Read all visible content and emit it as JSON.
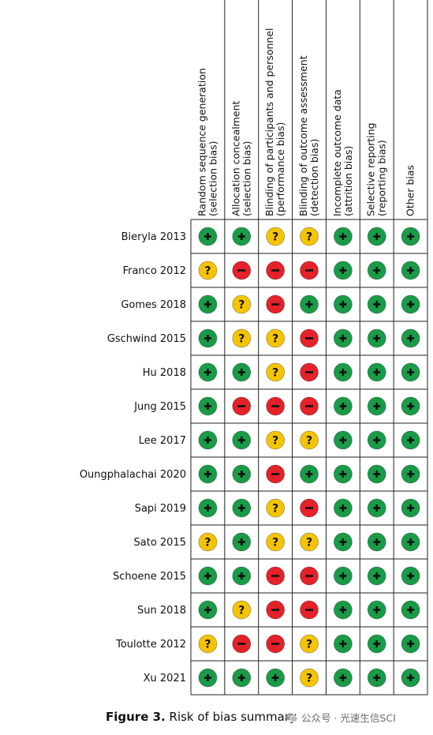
{
  "chart_data": {
    "type": "table",
    "columns": [
      [
        "Random sequence generation",
        "(selection bias)"
      ],
      [
        "Allocation concealment",
        "(selection bias)"
      ],
      [
        "Blinding of participants and personnel",
        "(performance bias)"
      ],
      [
        "Blinding of outcome assessment",
        "(detection bias)"
      ],
      [
        "Incomplete outcome data",
        "(attrition bias)"
      ],
      [
        "Selective reporting",
        "(reporting bias)"
      ],
      [
        "Other bias"
      ]
    ],
    "rows": [
      {
        "study": "Bieryla 2013",
        "ratings": [
          "low",
          "low",
          "unclear",
          "unclear",
          "low",
          "low",
          "low"
        ]
      },
      {
        "study": "Franco 2012",
        "ratings": [
          "unclear",
          "high",
          "high",
          "high",
          "low",
          "low",
          "low"
        ]
      },
      {
        "study": "Gomes 2018",
        "ratings": [
          "low",
          "unclear",
          "high",
          "low",
          "low",
          "low",
          "low"
        ]
      },
      {
        "study": "Gschwind 2015",
        "ratings": [
          "low",
          "unclear",
          "unclear",
          "high",
          "low",
          "low",
          "low"
        ]
      },
      {
        "study": "Hu 2018",
        "ratings": [
          "low",
          "low",
          "unclear",
          "high",
          "low",
          "low",
          "low"
        ]
      },
      {
        "study": "Jung 2015",
        "ratings": [
          "low",
          "high",
          "high",
          "high",
          "low",
          "low",
          "low"
        ]
      },
      {
        "study": "Lee 2017",
        "ratings": [
          "low",
          "low",
          "unclear",
          "unclear",
          "low",
          "low",
          "low"
        ]
      },
      {
        "study": "Oungphalachai 2020",
        "ratings": [
          "low",
          "low",
          "high",
          "low",
          "low",
          "low",
          "low"
        ]
      },
      {
        "study": "Sapi 2019",
        "ratings": [
          "low",
          "low",
          "unclear",
          "high",
          "low",
          "low",
          "low"
        ]
      },
      {
        "study": "Sato 2015",
        "ratings": [
          "unclear",
          "low",
          "unclear",
          "unclear",
          "low",
          "low",
          "low"
        ]
      },
      {
        "study": "Schoene 2015",
        "ratings": [
          "low",
          "low",
          "high",
          "high",
          "low",
          "low",
          "low"
        ]
      },
      {
        "study": "Sun 2018",
        "ratings": [
          "low",
          "unclear",
          "high",
          "high",
          "low",
          "low",
          "low"
        ]
      },
      {
        "study": "Toulotte 2012",
        "ratings": [
          "unclear",
          "high",
          "high",
          "unclear",
          "low",
          "low",
          "low"
        ]
      },
      {
        "study": "Xu 2021",
        "ratings": [
          "low",
          "low",
          "low",
          "unclear",
          "low",
          "low",
          "low"
        ]
      }
    ],
    "legend": {
      "low": {
        "symbol": "+",
        "color": "#1a9b47"
      },
      "unclear": {
        "symbol": "?",
        "color": "#f5c400"
      },
      "high": {
        "symbol": "−",
        "color": "#e52129"
      }
    }
  },
  "caption": {
    "label": "Figure 3.",
    "text": "Risk of bias summary"
  },
  "watermark": {
    "icon": "wechat-icon",
    "text": "公众号 · 光速生信SCI"
  }
}
